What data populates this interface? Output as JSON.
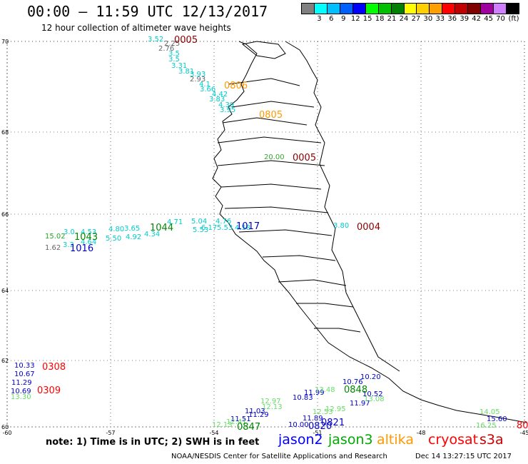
{
  "header": {
    "title": "00:00 – 11:59 UTC 12/13/2017",
    "subtitle": "12 hour collection of altimeter wave heights"
  },
  "legend": {
    "unit": "(ft)",
    "bins": [
      {
        "label": "",
        "color": "#808080"
      },
      {
        "label": "3",
        "color": "#00ffff"
      },
      {
        "label": "6",
        "color": "#00bfff"
      },
      {
        "label": "9",
        "color": "#0060ff"
      },
      {
        "label": "12",
        "color": "#0000ff"
      },
      {
        "label": "15",
        "color": "#00ff00"
      },
      {
        "label": "18",
        "color": "#00c000"
      },
      {
        "label": "21",
        "color": "#008000"
      },
      {
        "label": "24",
        "color": "#ffff00"
      },
      {
        "label": "27",
        "color": "#ffd000"
      },
      {
        "label": "30",
        "color": "#ffa000"
      },
      {
        "label": "33",
        "color": "#ff0000"
      },
      {
        "label": "36",
        "color": "#c00000"
      },
      {
        "label": "39",
        "color": "#800000"
      },
      {
        "label": "42",
        "color": "#a000a0"
      },
      {
        "label": "45",
        "color": "#d080ff"
      },
      {
        "label": "70",
        "color": "#000000"
      }
    ]
  },
  "axes": {
    "lon_ticks": [
      "-60",
      "-57",
      "-54",
      "-51",
      "-48",
      "-45"
    ],
    "lat_ticks": [
      "70",
      "68",
      "66",
      "64",
      "62",
      "60"
    ]
  },
  "labels": {
    "wave_heights": [
      {
        "text": "3.52",
        "color": "#00cccc"
      },
      {
        "text": "2.25",
        "color": "#666666"
      },
      {
        "text": "2.76",
        "color": "#666666"
      },
      {
        "text": "3.5",
        "color": "#00cccc"
      },
      {
        "text": "3.5",
        "color": "#00cccc"
      },
      {
        "text": "3.31",
        "color": "#00cccc"
      },
      {
        "text": "3.81",
        "color": "#00cccc"
      },
      {
        "text": "3.93",
        "color": "#00cccc"
      },
      {
        "text": "2.93",
        "color": "#666666"
      },
      {
        "text": "4.1",
        "color": "#00cccc"
      },
      {
        "text": "3.66",
        "color": "#00cccc"
      },
      {
        "text": "4.42",
        "color": "#00cccc"
      },
      {
        "text": "3.83",
        "color": "#00cccc"
      },
      {
        "text": "4.39",
        "color": "#00cccc"
      },
      {
        "text": "3.95",
        "color": "#00cccc"
      },
      {
        "text": "20.00",
        "color": "#33aa33"
      },
      {
        "text": "15.02",
        "color": "#22aa22"
      },
      {
        "text": "1.62",
        "color": "#666666"
      },
      {
        "text": "3.3",
        "color": "#00cccc"
      },
      {
        "text": "3.0",
        "color": "#00cccc"
      },
      {
        "text": "4.53",
        "color": "#00cccc"
      },
      {
        "text": "4.80",
        "color": "#00cccc"
      },
      {
        "text": "3.65",
        "color": "#00cccc"
      },
      {
        "text": "4.71",
        "color": "#00cccc"
      },
      {
        "text": "5.04",
        "color": "#00cccc"
      },
      {
        "text": "4.76",
        "color": "#00cccc"
      },
      {
        "text": "4.64",
        "color": "#00cccc"
      },
      {
        "text": "5.50",
        "color": "#00cccc"
      },
      {
        "text": "4.92",
        "color": "#00cccc"
      },
      {
        "text": "4.34",
        "color": "#00cccc"
      },
      {
        "text": "5.53",
        "color": "#00cccc"
      },
      {
        "text": "6.17",
        "color": "#00cccc"
      },
      {
        "text": "5.53",
        "color": "#00cccc"
      },
      {
        "text": "4.58",
        "color": "#00cccc"
      },
      {
        "text": "3.80",
        "color": "#00cccc"
      },
      {
        "text": "10.33",
        "color": "#0000cc"
      },
      {
        "text": "10.67",
        "color": "#0000cc"
      },
      {
        "text": "11.29",
        "color": "#0000cc"
      },
      {
        "text": "10.69",
        "color": "#0000cc"
      },
      {
        "text": "13.30",
        "color": "#66dd66"
      },
      {
        "text": "10.20",
        "color": "#0000cc"
      },
      {
        "text": "10.76",
        "color": "#0000cc"
      },
      {
        "text": "10.52",
        "color": "#0000cc"
      },
      {
        "text": "11.99",
        "color": "#0000cc"
      },
      {
        "text": "10.83",
        "color": "#0000cc"
      },
      {
        "text": "11.97",
        "color": "#0000cc"
      },
      {
        "text": "13.08",
        "color": "#66dd66"
      },
      {
        "text": "13.48",
        "color": "#66dd66"
      },
      {
        "text": "12.97",
        "color": "#66dd66"
      },
      {
        "text": "12.13",
        "color": "#66dd66"
      },
      {
        "text": "11.03",
        "color": "#0000cc"
      },
      {
        "text": "11.29",
        "color": "#0000cc"
      },
      {
        "text": "11.51",
        "color": "#0000cc"
      },
      {
        "text": "12.13",
        "color": "#66dd66"
      },
      {
        "text": "12.41",
        "color": "#66dd66"
      },
      {
        "text": "11.89",
        "color": "#0000cc"
      },
      {
        "text": "10.00",
        "color": "#0000cc"
      },
      {
        "text": "12.53",
        "color": "#66dd66"
      },
      {
        "text": "12.95",
        "color": "#66dd66"
      },
      {
        "text": "15.60",
        "color": "#0000cc"
      },
      {
        "text": "16.25",
        "color": "#66dd66"
      },
      {
        "text": "14.05",
        "color": "#66dd66"
      }
    ],
    "pass_ids": [
      {
        "text": "0005",
        "color": "#8b0000"
      },
      {
        "text": "0806",
        "color": "#ff9900"
      },
      {
        "text": "0805",
        "color": "#ff9900"
      },
      {
        "text": "0005",
        "color": "#8b0000"
      },
      {
        "text": "1043",
        "color": "#008800"
      },
      {
        "text": "1016",
        "color": "#0000cc"
      },
      {
        "text": "1044",
        "color": "#008800"
      },
      {
        "text": "1017",
        "color": "#0000cc"
      },
      {
        "text": "0004",
        "color": "#8b0000"
      },
      {
        "text": "0308",
        "color": "#ff0000"
      },
      {
        "text": "0309",
        "color": "#ff0000"
      },
      {
        "text": "0848",
        "color": "#008800"
      },
      {
        "text": "0847",
        "color": "#008800"
      },
      {
        "text": "0821",
        "color": "#0000cc"
      },
      {
        "text": "0820",
        "color": "#0000cc"
      },
      {
        "text": "80",
        "color": "#ff0000"
      }
    ]
  },
  "footer": {
    "note": "note:  1) Time is in UTC;  2) SWH is in feet",
    "satellites": [
      {
        "name": "jason2",
        "color": "#0000ff"
      },
      {
        "name": "jason3",
        "color": "#00aa00"
      },
      {
        "name": "altika",
        "color": "#ff9900"
      },
      {
        "name": "cryosat",
        "color": "#ff0000"
      },
      {
        "name": "s3a",
        "color": "#cc0000"
      }
    ],
    "credit": "NOAA/NESDIS Center for Satellite Applications and Research",
    "timestamp": "Dec 14 13:27:15 UTC 2017"
  }
}
